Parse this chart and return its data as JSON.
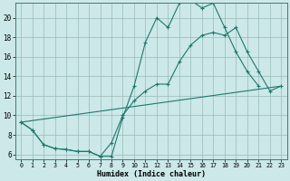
{
  "xlabel": "Humidex (Indice chaleur)",
  "bg_color": "#cce8e8",
  "line_color": "#1a7a6e",
  "grid_color": "#99bbbb",
  "xlim": [
    -0.5,
    23.5
  ],
  "ylim": [
    5.5,
    21.5
  ],
  "xticks": [
    0,
    1,
    2,
    3,
    4,
    5,
    6,
    7,
    8,
    9,
    10,
    11,
    12,
    13,
    14,
    15,
    16,
    17,
    18,
    19,
    20,
    21,
    22,
    23
  ],
  "yticks": [
    6,
    8,
    10,
    12,
    14,
    16,
    18,
    20
  ],
  "series": [
    {
      "x": [
        0,
        1,
        2,
        3,
        4,
        5,
        6,
        7,
        8,
        9,
        10,
        11,
        12,
        13,
        14,
        15,
        16,
        17,
        18,
        19,
        20,
        21
      ],
      "y": [
        9.3,
        8.5,
        7.0,
        6.6,
        6.5,
        6.3,
        6.3,
        5.8,
        5.8,
        9.8,
        13.0,
        17.5,
        20.0,
        19.0,
        21.5,
        21.8,
        21.0,
        21.5,
        19.0,
        16.5,
        14.5,
        13.0
      ],
      "marker": true
    },
    {
      "x": [
        0,
        1,
        2,
        3,
        4,
        5,
        6,
        7,
        8,
        9,
        10,
        11,
        12,
        13,
        14,
        15,
        16,
        17,
        18,
        19,
        20,
        21,
        22,
        23
      ],
      "y": [
        9.3,
        8.5,
        7.0,
        6.6,
        6.5,
        6.3,
        6.3,
        5.8,
        7.2,
        10.0,
        11.5,
        12.5,
        13.2,
        13.2,
        15.5,
        17.2,
        18.2,
        18.5,
        18.2,
        19.0,
        16.5,
        14.5,
        12.5,
        13.0
      ],
      "marker": true
    },
    {
      "x": [
        0,
        23
      ],
      "y": [
        9.3,
        13.0
      ],
      "marker": false
    }
  ]
}
